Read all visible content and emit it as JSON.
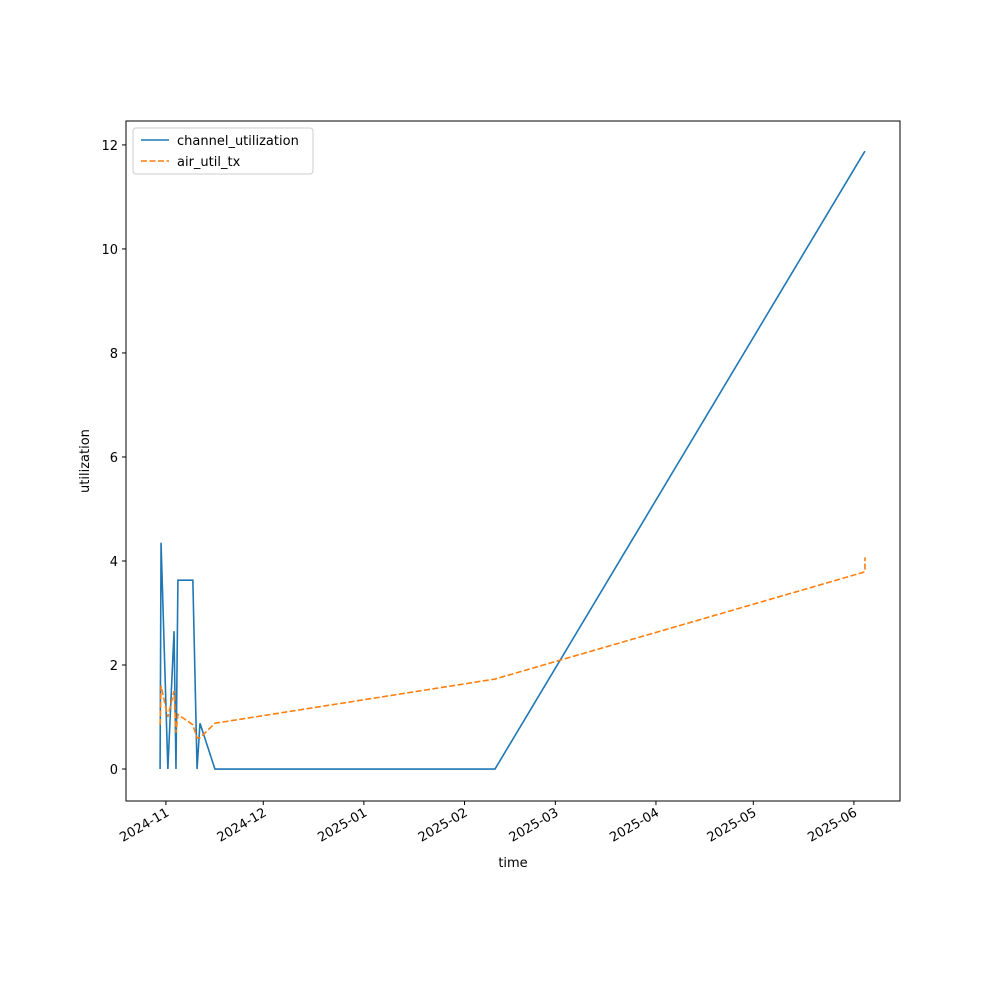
{
  "chart_data": {
    "type": "line",
    "x_label": "time",
    "y_label": "utilization",
    "x": [
      20026.2,
      20026.5,
      20028.6,
      20030.5,
      20031.1,
      20031.7,
      20036.3,
      20037.6,
      20038.5,
      20043.1,
      20129.4,
      20242.8,
      20243.4,
      20243.4
    ],
    "series": [
      {
        "name": "channel_utilization",
        "color": "#1f77b4",
        "dash": "solid",
        "values": [
          0,
          4.35,
          0,
          2.65,
          0,
          3.63,
          3.63,
          0,
          0.88,
          0,
          0,
          11.82,
          11.88,
          11.88
        ]
      },
      {
        "name": "air_util_tx",
        "color": "#ff7f0e",
        "dash": "dashed",
        "values": [
          0.85,
          1.6,
          1.0,
          1.5,
          0.7,
          1.05,
          0.85,
          0.6,
          0.6,
          0.88,
          1.73,
          3.78,
          3.8,
          4.07
        ]
      }
    ],
    "xlim": [
      20015.7,
      20254.2
    ],
    "xticks": [
      {
        "value": 20028,
        "label": "2024-11"
      },
      {
        "value": 20058,
        "label": "2024-12"
      },
      {
        "value": 20089,
        "label": "2025-01"
      },
      {
        "value": 20120,
        "label": "2025-02"
      },
      {
        "value": 20148,
        "label": "2025-03"
      },
      {
        "value": 20179,
        "label": "2025-04"
      },
      {
        "value": 20209,
        "label": "2025-05"
      },
      {
        "value": 20240,
        "label": "2025-06"
      }
    ],
    "ylim": [
      -0.615,
      12.46
    ],
    "yticks": [
      0,
      2,
      4,
      6,
      8,
      10,
      12
    ],
    "legend": "upper left"
  }
}
